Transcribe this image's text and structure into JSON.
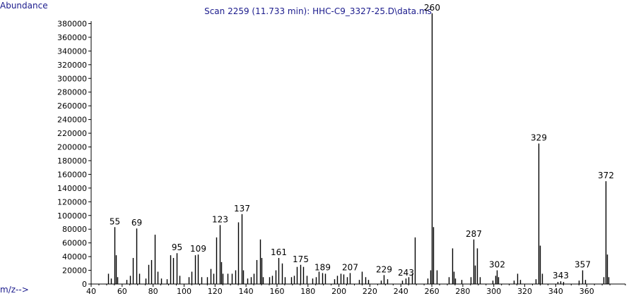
{
  "header": {
    "y_axis_label": "Abundance",
    "title": "Scan 2259 (11.733 min): HHC-C9_3327-25.D\\data.ms",
    "x_axis_label": "m/z-->"
  },
  "colors": {
    "axis": "#000000",
    "text": "#000000",
    "label_accent": "#1a1a8c",
    "background": "#ffffff"
  },
  "chart_data": {
    "type": "bar",
    "title": "Scan 2259 (11.733 min): HHC-C9_3327-25.D\\data.ms",
    "xlabel": "m/z-->",
    "ylabel": "Abundance",
    "xlim": [
      40,
      385
    ],
    "ylim": [
      0,
      400000
    ],
    "x_ticks": [
      40,
      60,
      80,
      100,
      120,
      140,
      160,
      180,
      200,
      220,
      240,
      260,
      280,
      300,
      320,
      340,
      360
    ],
    "y_ticks": [
      0,
      20000,
      40000,
      60000,
      80000,
      100000,
      120000,
      140000,
      160000,
      180000,
      200000,
      220000,
      240000,
      260000,
      280000,
      300000,
      320000,
      340000,
      360000,
      380000
    ],
    "grid": false,
    "peaks": [
      {
        "mz": 51,
        "abundance": 15000
      },
      {
        "mz": 53,
        "abundance": 8000
      },
      {
        "mz": 55,
        "abundance": 83000,
        "label": "55"
      },
      {
        "mz": 56,
        "abundance": 42000
      },
      {
        "mz": 57,
        "abundance": 10000
      },
      {
        "mz": 63,
        "abundance": 6000
      },
      {
        "mz": 65,
        "abundance": 12000
      },
      {
        "mz": 67,
        "abundance": 38000
      },
      {
        "mz": 69,
        "abundance": 81000,
        "label": "69"
      },
      {
        "mz": 71,
        "abundance": 15000
      },
      {
        "mz": 75,
        "abundance": 8000
      },
      {
        "mz": 77,
        "abundance": 28000
      },
      {
        "mz": 79,
        "abundance": 35000
      },
      {
        "mz": 81,
        "abundance": 72000
      },
      {
        "mz": 83,
        "abundance": 18000
      },
      {
        "mz": 85,
        "abundance": 8000
      },
      {
        "mz": 89,
        "abundance": 7000
      },
      {
        "mz": 91,
        "abundance": 42000
      },
      {
        "mz": 93,
        "abundance": 38000
      },
      {
        "mz": 95,
        "abundance": 45000,
        "label": "95"
      },
      {
        "mz": 97,
        "abundance": 12000
      },
      {
        "mz": 103,
        "abundance": 10000
      },
      {
        "mz": 105,
        "abundance": 18000
      },
      {
        "mz": 107,
        "abundance": 42000
      },
      {
        "mz": 109,
        "abundance": 43000,
        "label": "109"
      },
      {
        "mz": 111,
        "abundance": 10000
      },
      {
        "mz": 115,
        "abundance": 10000
      },
      {
        "mz": 117,
        "abundance": 22000
      },
      {
        "mz": 119,
        "abundance": 15000
      },
      {
        "mz": 121,
        "abundance": 68000
      },
      {
        "mz": 123,
        "abundance": 86000,
        "label": "123"
      },
      {
        "mz": 124,
        "abundance": 32000
      },
      {
        "mz": 125,
        "abundance": 15000
      },
      {
        "mz": 128,
        "abundance": 15000
      },
      {
        "mz": 131,
        "abundance": 15000
      },
      {
        "mz": 133,
        "abundance": 20000
      },
      {
        "mz": 135,
        "abundance": 90000
      },
      {
        "mz": 137,
        "abundance": 102000,
        "label": "137"
      },
      {
        "mz": 138,
        "abundance": 20000
      },
      {
        "mz": 141,
        "abundance": 8000
      },
      {
        "mz": 143,
        "abundance": 10000
      },
      {
        "mz": 145,
        "abundance": 15000
      },
      {
        "mz": 147,
        "abundance": 35000
      },
      {
        "mz": 149,
        "abundance": 65000
      },
      {
        "mz": 150,
        "abundance": 38000
      },
      {
        "mz": 151,
        "abundance": 10000
      },
      {
        "mz": 155,
        "abundance": 10000
      },
      {
        "mz": 157,
        "abundance": 12000
      },
      {
        "mz": 159,
        "abundance": 20000
      },
      {
        "mz": 161,
        "abundance": 38000,
        "label": "161"
      },
      {
        "mz": 163,
        "abundance": 30000
      },
      {
        "mz": 165,
        "abundance": 10000
      },
      {
        "mz": 169,
        "abundance": 10000
      },
      {
        "mz": 171,
        "abundance": 12000
      },
      {
        "mz": 173,
        "abundance": 25000
      },
      {
        "mz": 175,
        "abundance": 28000,
        "label": "175"
      },
      {
        "mz": 177,
        "abundance": 25000
      },
      {
        "mz": 179,
        "abundance": 12000
      },
      {
        "mz": 183,
        "abundance": 8000
      },
      {
        "mz": 185,
        "abundance": 10000
      },
      {
        "mz": 187,
        "abundance": 18000
      },
      {
        "mz": 189,
        "abundance": 16000,
        "label": "189"
      },
      {
        "mz": 191,
        "abundance": 15000
      },
      {
        "mz": 197,
        "abundance": 7000
      },
      {
        "mz": 199,
        "abundance": 12000
      },
      {
        "mz": 201,
        "abundance": 15000
      },
      {
        "mz": 203,
        "abundance": 14000
      },
      {
        "mz": 205,
        "abundance": 10000
      },
      {
        "mz": 207,
        "abundance": 16000,
        "label": "207"
      },
      {
        "mz": 213,
        "abundance": 6000
      },
      {
        "mz": 215,
        "abundance": 18000
      },
      {
        "mz": 217,
        "abundance": 10000
      },
      {
        "mz": 219,
        "abundance": 6000
      },
      {
        "mz": 227,
        "abundance": 5000
      },
      {
        "mz": 229,
        "abundance": 13000,
        "label": "229"
      },
      {
        "mz": 231,
        "abundance": 7000
      },
      {
        "mz": 241,
        "abundance": 5000
      },
      {
        "mz": 243,
        "abundance": 8000,
        "label": "243"
      },
      {
        "mz": 245,
        "abundance": 10000
      },
      {
        "mz": 247,
        "abundance": 15000
      },
      {
        "mz": 249,
        "abundance": 68000
      },
      {
        "mz": 257,
        "abundance": 8000
      },
      {
        "mz": 259,
        "abundance": 20000
      },
      {
        "mz": 260,
        "abundance": 395000,
        "label": "260"
      },
      {
        "mz": 261,
        "abundance": 83000
      },
      {
        "mz": 263,
        "abundance": 20000
      },
      {
        "mz": 271,
        "abundance": 10000
      },
      {
        "mz": 273,
        "abundance": 52000
      },
      {
        "mz": 274,
        "abundance": 18000
      },
      {
        "mz": 275,
        "abundance": 8000
      },
      {
        "mz": 279,
        "abundance": 6000
      },
      {
        "mz": 285,
        "abundance": 10000
      },
      {
        "mz": 287,
        "abundance": 65000,
        "label": "287"
      },
      {
        "mz": 288,
        "abundance": 27000
      },
      {
        "mz": 289,
        "abundance": 52000
      },
      {
        "mz": 291,
        "abundance": 10000
      },
      {
        "mz": 299,
        "abundance": 5000
      },
      {
        "mz": 301,
        "abundance": 12000
      },
      {
        "mz": 302,
        "abundance": 20000,
        "label": "302"
      },
      {
        "mz": 303,
        "abundance": 10000
      },
      {
        "mz": 313,
        "abundance": 5000
      },
      {
        "mz": 315,
        "abundance": 15000
      },
      {
        "mz": 317,
        "abundance": 6000
      },
      {
        "mz": 327,
        "abundance": 7000
      },
      {
        "mz": 329,
        "abundance": 205000,
        "label": "329"
      },
      {
        "mz": 330,
        "abundance": 56000
      },
      {
        "mz": 331,
        "abundance": 15000
      },
      {
        "mz": 341,
        "abundance": 3000
      },
      {
        "mz": 343,
        "abundance": 4000,
        "label": "343"
      },
      {
        "mz": 345,
        "abundance": 3000
      },
      {
        "mz": 355,
        "abundance": 5000
      },
      {
        "mz": 357,
        "abundance": 20000,
        "label": "357"
      },
      {
        "mz": 359,
        "abundance": 6000
      },
      {
        "mz": 371,
        "abundance": 10000
      },
      {
        "mz": 372,
        "abundance": 150000,
        "label": "372"
      },
      {
        "mz": 373,
        "abundance": 43000
      },
      {
        "mz": 374,
        "abundance": 10000
      }
    ]
  }
}
